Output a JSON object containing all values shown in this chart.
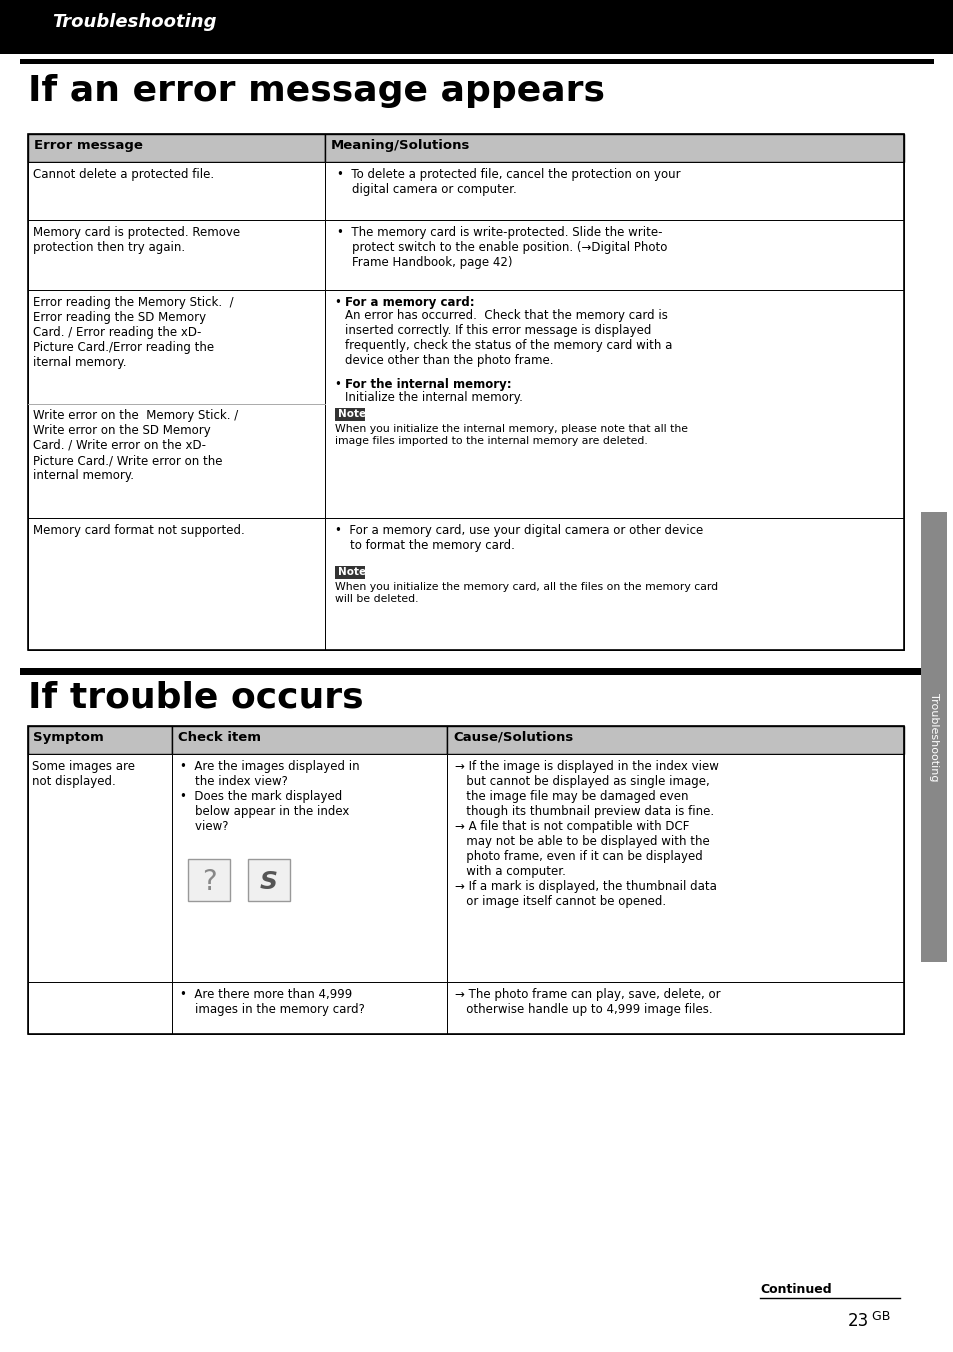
{
  "page_bg": "#ffffff",
  "header_bg": "#000000",
  "header_text": "Troubleshooting",
  "header_text_color": "#ffffff",
  "section1_title": "If an error message appears",
  "section2_title": "If trouble occurs",
  "table1_header": [
    "Error message",
    "Meaning/Solutions"
  ],
  "table1_header_bg": "#c0c0c0",
  "table2_header": [
    "Symptom",
    "Check item",
    "Cause/Solutions"
  ],
  "table2_header_bg": "#c0c0c0",
  "sidebar_text": "Troubleshooting",
  "sidebar_bg": "#888888",
  "footer_continued": "Continued",
  "footer_page": "23",
  "footer_page_suffix": " GB",
  "note_bg": "#333333",
  "note_text_color": "#ffffff",
  "table_border": "#000000",
  "body_font_size": 8.5
}
